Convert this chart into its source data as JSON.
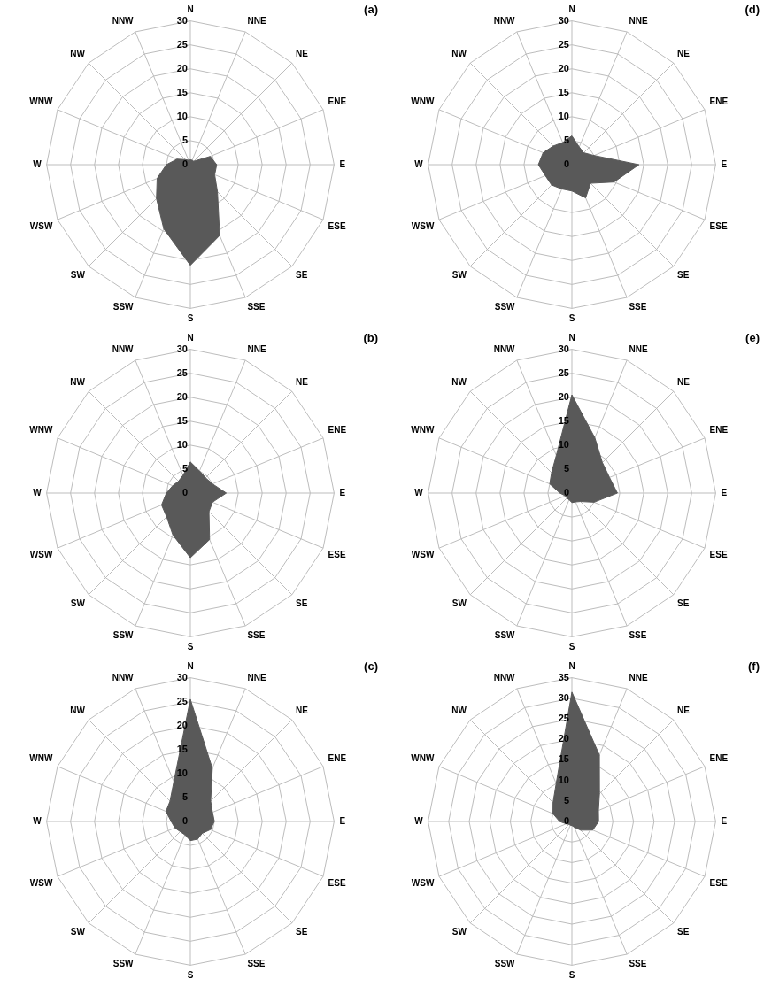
{
  "chart_data": [
    {
      "type": "radar",
      "title": "(a)",
      "categories": [
        "N",
        "NNE",
        "NE",
        "ENE",
        "E",
        "ESE",
        "SE",
        "SSE",
        "S",
        "SSW",
        "SW",
        "WSW",
        "W",
        "WNW",
        "NW",
        "NNW"
      ],
      "series": [
        {
          "color": "#595959",
          "values": [
            1,
            1,
            1,
            4.5,
            5.5,
            5.5,
            8,
            16,
            21,
            14.5,
            10,
            7.5,
            5,
            3,
            1.5,
            1
          ]
        }
      ],
      "ylim": [
        0,
        30
      ],
      "yticks": [
        0,
        5,
        10,
        15,
        20,
        25,
        30
      ],
      "grid": true,
      "marker": "none"
    },
    {
      "type": "radar",
      "title": "(d)",
      "categories": [
        "N",
        "NNE",
        "NE",
        "ENE",
        "E",
        "ESE",
        "SE",
        "SSE",
        "S",
        "SSW",
        "SW",
        "WSW",
        "W",
        "WNW",
        "NW",
        "NNW"
      ],
      "series": [
        {
          "color": "#595959",
          "values": [
            6,
            4,
            3.5,
            5,
            14,
            9.5,
            5.5,
            7.5,
            5.5,
            5.5,
            6,
            6,
            7,
            6.5,
            5.5,
            5
          ]
        }
      ],
      "ylim": [
        0,
        30
      ],
      "yticks": [
        0,
        5,
        10,
        15,
        20,
        25,
        30
      ],
      "grid": true,
      "marker": "none"
    },
    {
      "type": "radar",
      "title": "(b)",
      "categories": [
        "N",
        "NNE",
        "NE",
        "ENE",
        "E",
        "ESE",
        "SE",
        "SSE",
        "S",
        "SSW",
        "SW",
        "WSW",
        "W",
        "WNW",
        "NW",
        "NNW"
      ],
      "series": [
        {
          "color": "#595959",
          "values": [
            6.5,
            5,
            4.5,
            5,
            7.5,
            5,
            5.5,
            10.5,
            13.5,
            9.5,
            7,
            6.5,
            5,
            4,
            3.5,
            4
          ]
        }
      ],
      "ylim": [
        0,
        30
      ],
      "yticks": [
        0,
        5,
        10,
        15,
        20,
        25,
        30
      ],
      "grid": true,
      "marker": "none"
    },
    {
      "type": "radar",
      "title": "(e)",
      "categories": [
        "N",
        "NNE",
        "NE",
        "ENE",
        "E",
        "ESE",
        "SE",
        "SSE",
        "S",
        "SSW",
        "SW",
        "WSW",
        "W",
        "WNW",
        "NW",
        "NNW"
      ],
      "series": [
        {
          "color": "#595959",
          "values": [
            20.5,
            12.5,
            9,
            8.5,
            9.5,
            5,
            2.5,
            2,
            2,
            1.5,
            1.5,
            1.5,
            2.5,
            5,
            6,
            8.5
          ]
        }
      ],
      "ylim": [
        0,
        30
      ],
      "yticks": [
        0,
        5,
        10,
        15,
        20,
        25,
        30
      ],
      "grid": true,
      "marker": "none"
    },
    {
      "type": "radar",
      "title": "(c)",
      "categories": [
        "N",
        "NNE",
        "NE",
        "ENE",
        "E",
        "ESE",
        "SE",
        "SSE",
        "S",
        "SSW",
        "SW",
        "WSW",
        "W",
        "WNW",
        "NW",
        "NNW"
      ],
      "series": [
        {
          "color": "#595959",
          "values": [
            25.5,
            12,
            6,
            5,
            5,
            4.5,
            3.5,
            4,
            4,
            3,
            3,
            3.5,
            4,
            5.5,
            6,
            9
          ]
        }
      ],
      "ylim": [
        0,
        30
      ],
      "yticks": [
        0,
        5,
        10,
        15,
        20,
        25,
        30
      ],
      "grid": true,
      "marker": "none"
    },
    {
      "type": "radar",
      "title": "(f)",
      "categories": [
        "N",
        "NNE",
        "NE",
        "ENE",
        "E",
        "ESE",
        "SE",
        "SSE",
        "S",
        "SSW",
        "SW",
        "WSW",
        "W",
        "WNW",
        "NW",
        "NNW"
      ],
      "series": [
        {
          "color": "#595959",
          "values": [
            31.5,
            17.5,
            9.5,
            7,
            6.5,
            5.5,
            3,
            1.5,
            1,
            1,
            1,
            1.5,
            3,
            5,
            6.5,
            10
          ]
        }
      ],
      "ylim": [
        0,
        35
      ],
      "yticks": [
        0,
        5,
        10,
        15,
        20,
        25,
        30,
        35
      ],
      "grid": true,
      "marker": "none"
    }
  ]
}
